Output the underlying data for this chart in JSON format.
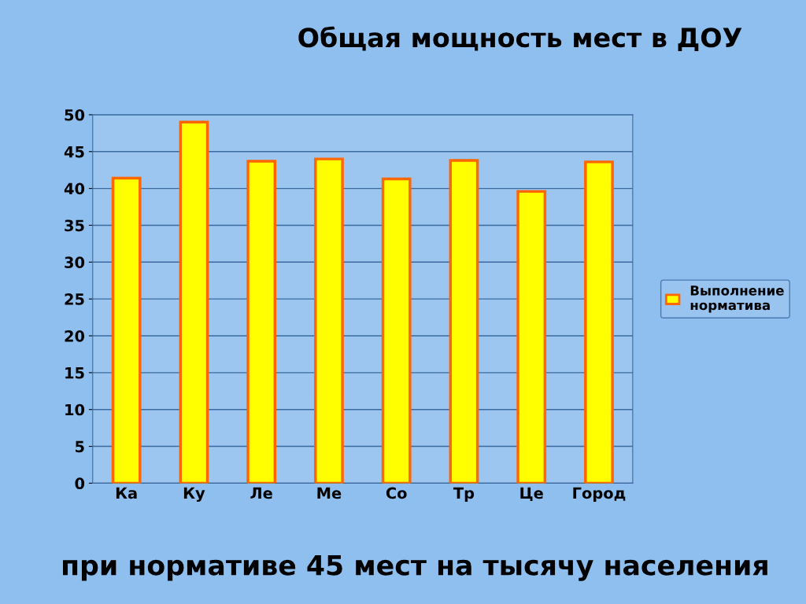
{
  "chart_data": {
    "type": "bar",
    "title": "Общая мощность мест в ДОУ",
    "categories": [
      "Ка",
      "Ку",
      "Ле",
      "Ме",
      "Со",
      "Тр",
      "Це",
      "Город"
    ],
    "series": [
      {
        "name": "Выполнение норматива",
        "color": "#ffff00",
        "values": [
          41.4,
          49.0,
          43.7,
          44.0,
          41.3,
          43.8,
          39.6,
          43.6
        ]
      }
    ],
    "ylim": [
      0,
      50
    ],
    "yticks": [
      0,
      5,
      10,
      15,
      20,
      25,
      30,
      35,
      40,
      45,
      50
    ],
    "grid": "y",
    "legend": "right",
    "annotations": [
      "при нормативе 45 мест на тысячу населения"
    ]
  }
}
